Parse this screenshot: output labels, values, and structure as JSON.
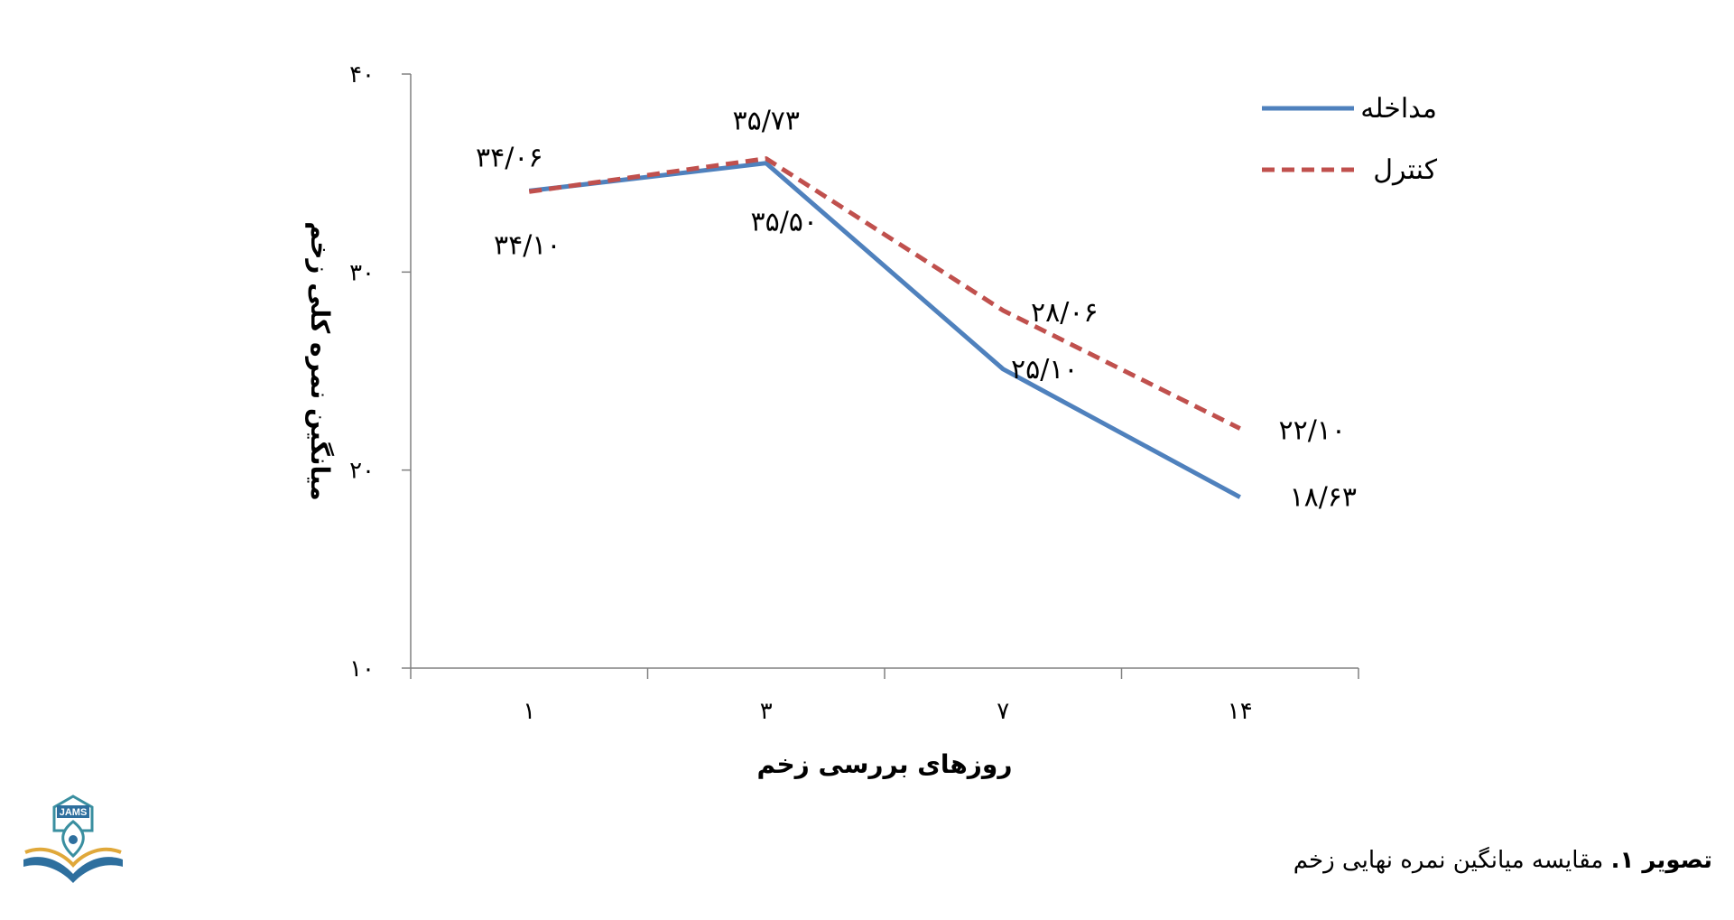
{
  "chart_data": {
    "type": "line",
    "categories": [
      "۱",
      "۳",
      "۷",
      "۱۴"
    ],
    "ylabel": "میانگین نمره کلی زخم",
    "xlabel": "روزهای بررسی زخم",
    "ylim": [
      10,
      40
    ],
    "yticks": [
      "۱۰",
      "۲۰",
      "۳۰",
      "۴۰"
    ],
    "ytick_values": [
      10,
      20,
      30,
      40
    ],
    "legend_position": "top-right",
    "series": [
      {
        "name": "مداخله",
        "values": [
          34.1,
          35.5,
          25.1,
          18.63
        ],
        "labels": [
          "۳۴/۱۰",
          "۳۵/۵۰",
          "۲۵/۱۰",
          "۱۸/۶۳"
        ],
        "color": "#4f81bd",
        "style": "solid"
      },
      {
        "name": "کنترل",
        "values": [
          34.06,
          35.73,
          28.06,
          22.1
        ],
        "labels": [
          "۳۴/۰۶",
          "۳۵/۷۳",
          "۲۸/۰۶",
          "۲۲/۱۰"
        ],
        "color": "#c0504d",
        "style": "dashed"
      }
    ]
  },
  "caption": {
    "bold": "تصویر ۱.",
    "text": " مقایسه میانگین نمره نهایی زخم"
  },
  "logo": {
    "text": "JAMS",
    "icon": "jams-journal-logo-icon"
  }
}
